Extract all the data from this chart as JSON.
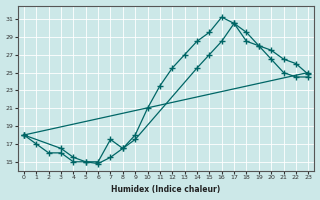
{
  "title": "",
  "xlabel": "Humidex (Indice chaleur)",
  "bg_color": "#cce8e8",
  "line_color": "#006666",
  "grid_color": "#ffffff",
  "xlim": [
    -0.5,
    23.5
  ],
  "ylim": [
    14,
    32.5
  ],
  "yticks": [
    15,
    17,
    19,
    21,
    23,
    25,
    27,
    29,
    31
  ],
  "xticks": [
    0,
    1,
    2,
    3,
    4,
    5,
    6,
    7,
    8,
    9,
    10,
    11,
    12,
    13,
    14,
    15,
    16,
    17,
    18,
    19,
    20,
    21,
    22,
    23
  ],
  "line1_x": [
    0,
    1,
    2,
    3,
    4,
    5,
    6,
    7,
    8,
    9,
    10,
    11,
    12,
    13,
    14,
    15,
    16,
    17,
    18,
    19,
    20,
    21,
    22,
    23
  ],
  "line1_y": [
    18.0,
    17.0,
    16.0,
    16.0,
    15.0,
    15.0,
    15.0,
    17.5,
    16.5,
    18.0,
    21.0,
    23.5,
    25.5,
    27.0,
    28.5,
    29.5,
    31.2,
    30.5,
    29.5,
    28.0,
    26.5,
    25.0,
    24.5,
    24.5
  ],
  "line2_x": [
    0,
    3,
    4,
    5,
    6,
    7,
    8,
    9,
    14,
    15,
    16,
    17,
    18,
    19,
    20,
    21,
    22,
    23
  ],
  "line2_y": [
    18.0,
    16.5,
    15.5,
    15.0,
    14.8,
    15.5,
    16.5,
    17.5,
    25.5,
    27.0,
    28.5,
    30.5,
    28.5,
    28.0,
    27.5,
    26.5,
    26.0,
    24.8
  ],
  "line3_x": [
    0,
    23
  ],
  "line3_y": [
    18.0,
    25.0
  ]
}
